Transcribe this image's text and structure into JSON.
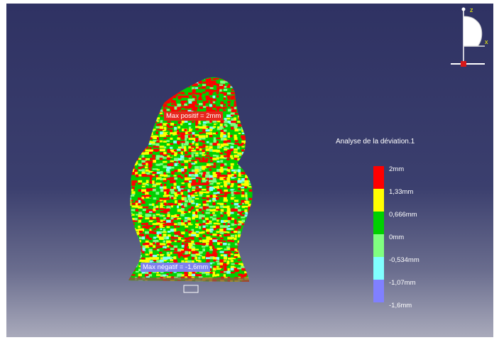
{
  "viewport": {
    "background_top": "#2f3263",
    "background_bottom": "#a9aabb"
  },
  "annotations": {
    "max_positive": "Max positif = 2mm",
    "max_negative": "Max négatif = -1,6mm"
  },
  "legend": {
    "title": "Analyse de la déviation.1",
    "entries": [
      {
        "label": "2mm",
        "color": "#ff0000"
      },
      {
        "label": "1,33mm",
        "color": "#ffff00"
      },
      {
        "label": "0,666mm",
        "color": "#00d000"
      },
      {
        "label": "0mm",
        "color": "#80ff80"
      },
      {
        "label": "-0,534mm",
        "color": "#80ffff"
      },
      {
        "label": "-1,07mm",
        "color": "#8080ff"
      },
      {
        "label": "-1,6mm",
        "color": ""
      }
    ]
  },
  "compass": {
    "z_label": "z",
    "x_label": "x"
  }
}
